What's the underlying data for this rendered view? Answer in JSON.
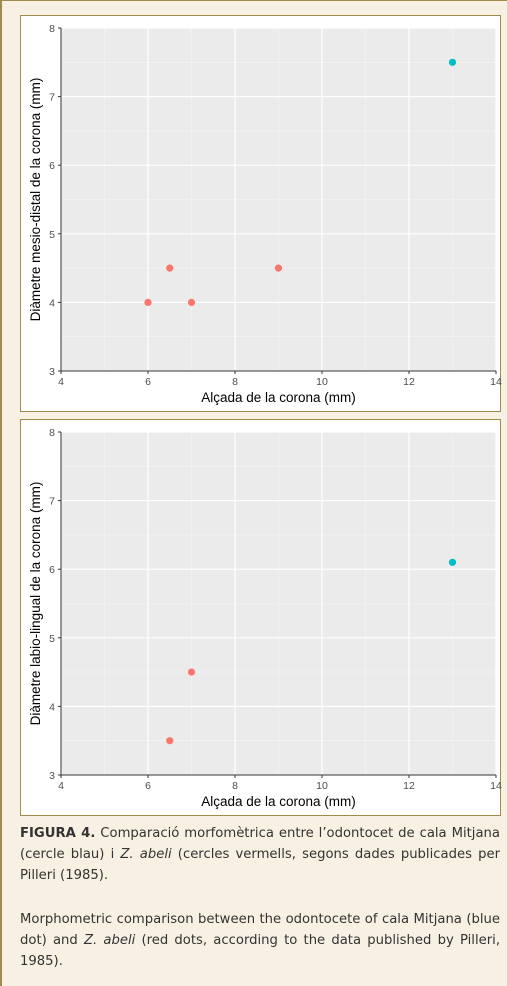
{
  "chart_data": [
    {
      "type": "scatter",
      "xlabel": "Alçada de la corona (mm)",
      "ylabel": "Diàmetre mesio-distal de la corona (mm)",
      "xlim": [
        4,
        14
      ],
      "ylim": [
        3,
        8
      ],
      "xticks": [
        4,
        6,
        8,
        10,
        12,
        14
      ],
      "yticks": [
        3,
        4,
        5,
        6,
        7,
        8
      ],
      "grid": true,
      "series": [
        {
          "color": "#f8766d",
          "points": [
            [
              6,
              4
            ],
            [
              6.5,
              4.5
            ],
            [
              7,
              4
            ],
            [
              9,
              4.5
            ]
          ]
        },
        {
          "color": "#00bfc4",
          "points": [
            [
              13,
              7.5
            ]
          ]
        }
      ]
    },
    {
      "type": "scatter",
      "xlabel": "Alçada de la corona (mm)",
      "ylabel": "Diàmetre labio-lingual de la corona (mm)",
      "xlim": [
        4,
        14
      ],
      "ylim": [
        3,
        8
      ],
      "xticks": [
        4,
        6,
        8,
        10,
        12,
        14
      ],
      "yticks": [
        3,
        4,
        5,
        6,
        7,
        8
      ],
      "grid": true,
      "series": [
        {
          "color": "#f8766d",
          "points": [
            [
              6.5,
              3.5
            ],
            [
              7,
              4.5
            ]
          ]
        },
        {
          "color": "#00bfc4",
          "points": [
            [
              13,
              6.1
            ]
          ]
        }
      ]
    }
  ],
  "caption": {
    "label": "FIGURA 4.",
    "ca_part1": " Comparació morfomètrica entre l’odontocet de cala Mitjana (cercle blau) i ",
    "species": "Z. abeli",
    "ca_part2": " (cercles vermells, segons dades publicades per Pilleri (1985).",
    "en_part1": "Morphometric comparison between the odontocete of cala Mitjana (blue dot) and ",
    "en_part2": " (red dots, according to the data published by Pilleri, 1985)."
  }
}
